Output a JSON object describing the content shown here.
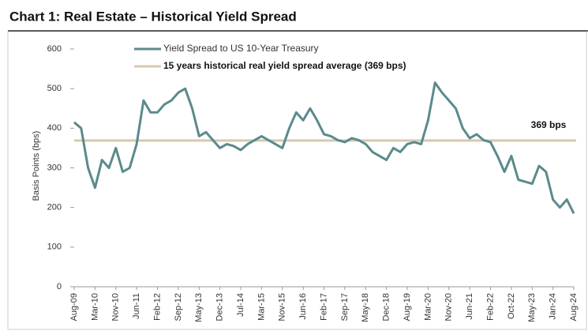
{
  "chart_data": {
    "type": "line",
    "title": "Chart 1: Real Estate – Historical Yield Spread",
    "y_label": "Basis Points (bps)",
    "categories": [
      "Aug-09",
      null,
      null,
      "Mar-10",
      null,
      null,
      "Nov-10",
      null,
      null,
      "Jun-11",
      null,
      null,
      "Feb-12",
      null,
      null,
      "Sep-12",
      null,
      null,
      "May-13",
      null,
      null,
      "Dec-13",
      null,
      null,
      "Jul-14",
      null,
      null,
      "Mar-15",
      null,
      null,
      "Nov-15",
      null,
      null,
      "Jun-16",
      null,
      null,
      "Feb-17",
      null,
      null,
      "Sep-17",
      null,
      null,
      "May-18",
      null,
      null,
      "Dec-18",
      null,
      null,
      "Aug-19",
      null,
      null,
      "Mar-20",
      null,
      null,
      "Nov-20",
      null,
      null,
      "Jun-21",
      null,
      null,
      "Feb-22",
      null,
      null,
      "Oct-22",
      null,
      null,
      "May-23",
      null,
      null,
      "Jan-24",
      null,
      null,
      "Aug-24"
    ],
    "series": [
      {
        "name": "Yield Spread to US 10-Year Treasury",
        "color": "#5b8a8c",
        "values": [
          415,
          400,
          300,
          250,
          320,
          300,
          350,
          290,
          300,
          360,
          470,
          440,
          440,
          460,
          470,
          490,
          500,
          450,
          380,
          390,
          370,
          350,
          360,
          355,
          345,
          360,
          370,
          380,
          370,
          360,
          350,
          400,
          440,
          420,
          450,
          420,
          385,
          380,
          370,
          365,
          375,
          370,
          360,
          340,
          330,
          320,
          350,
          340,
          360,
          365,
          360,
          420,
          515,
          490,
          470,
          450,
          400,
          375,
          385,
          370,
          365,
          330,
          290,
          330,
          270,
          265,
          260,
          305,
          290,
          220,
          200,
          220,
          185
        ]
      }
    ],
    "average": {
      "name": "15 years historical real yield spread average (369 bps)",
      "value": 369,
      "label": "369 bps",
      "color": "#d9c8b0"
    },
    "ylim": [
      0,
      600
    ],
    "yticks": [
      0,
      100,
      200,
      300,
      400,
      500,
      600
    ],
    "grid": false
  }
}
